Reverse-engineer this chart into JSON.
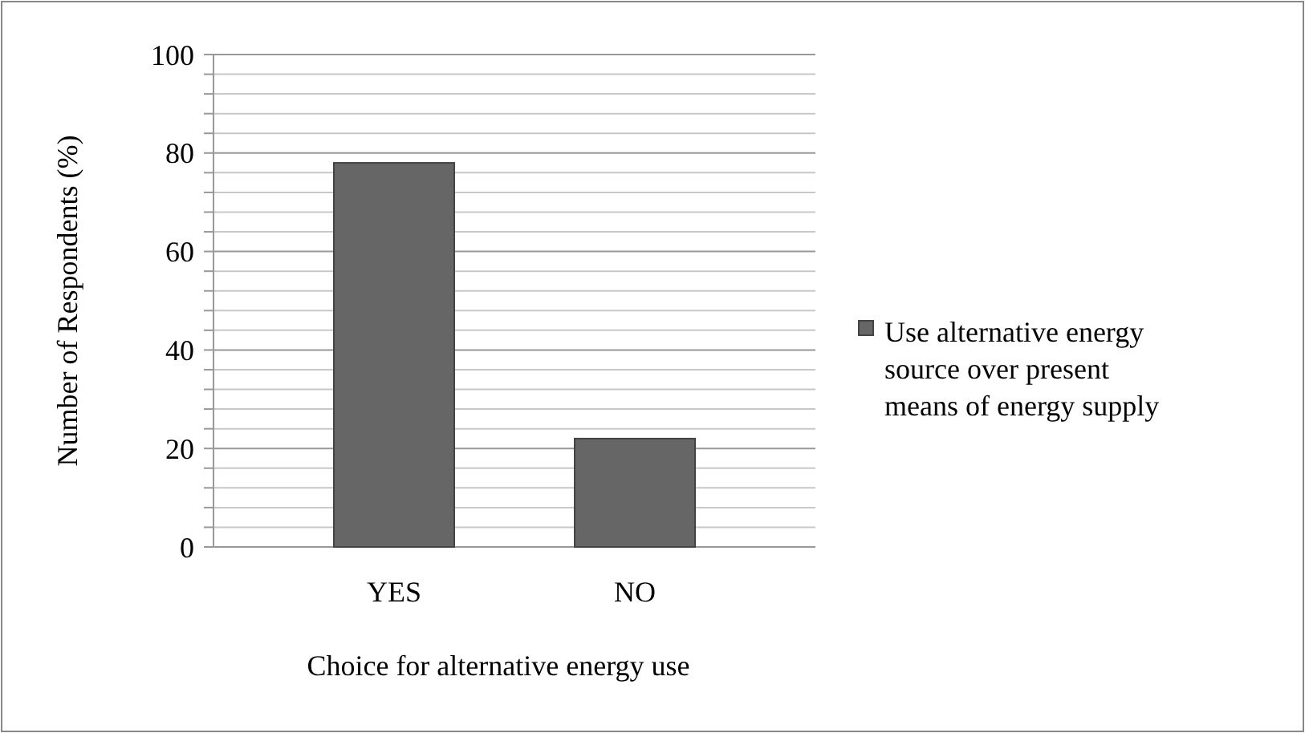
{
  "chart_data": {
    "type": "bar",
    "xlabel": "Choice for alternative energy use",
    "ylabel": "Number of Respondents (%)",
    "categories": [
      "YES",
      "NO"
    ],
    "series": [
      {
        "name": "Use alternative energy source over present means of energy supply",
        "color": "#666666",
        "values": [
          78,
          22
        ]
      }
    ],
    "ylim": [
      0,
      100
    ],
    "yticks": [
      0,
      {
        "value": 4,
        "label": null
      },
      {
        "value": 8,
        "label": null
      },
      {
        "value": 12,
        "label": null
      },
      {
        "value": 16,
        "label": null
      },
      20,
      {
        "value": 24,
        "label": null
      },
      {
        "value": 28,
        "label": null
      },
      {
        "value": 32,
        "label": null
      },
      {
        "value": 36,
        "label": null
      },
      40,
      {
        "value": 44,
        "label": null
      },
      {
        "value": 48,
        "label": null
      },
      {
        "value": 52,
        "label": null
      },
      {
        "value": 56,
        "label": null
      },
      60,
      {
        "value": 64,
        "label": null
      },
      {
        "value": 68,
        "label": null
      },
      {
        "value": 72,
        "label": null
      },
      {
        "value": 76,
        "label": null
      },
      80,
      {
        "value": 84,
        "label": null
      },
      {
        "value": 88,
        "label": null
      },
      {
        "value": 92,
        "label": null
      },
      {
        "value": 96,
        "label": null
      },
      100
    ],
    "grid": "y",
    "legend": "right"
  }
}
